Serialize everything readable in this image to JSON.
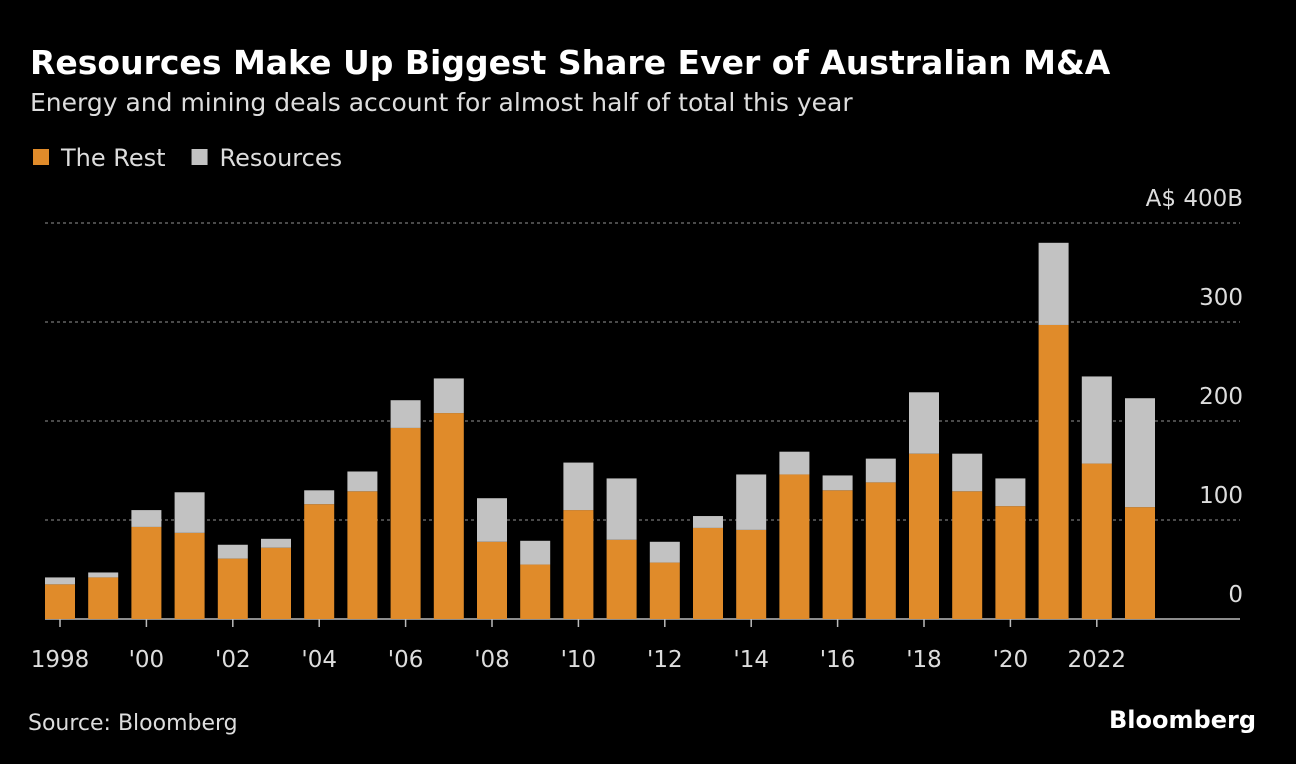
{
  "chart_data": {
    "type": "stacked_bar",
    "title": "Resources Make Up Biggest Share Ever of Australian M&A",
    "subtitle": "Energy and mining deals account for almost half of total this year",
    "categories": [
      "1998",
      null,
      "'00",
      null,
      "'02",
      null,
      "'04",
      null,
      "'06",
      null,
      "'08",
      null,
      "'10",
      null,
      "'12",
      null,
      "'14",
      null,
      "'16",
      null,
      "'18",
      null,
      "'20",
      null,
      "2022",
      null
    ],
    "series": [
      {
        "name": "The Rest",
        "color": "#e08b2a",
        "values": [
          35,
          42,
          93,
          87,
          61,
          72,
          116,
          129,
          193,
          208,
          78,
          55,
          110,
          80,
          57,
          92,
          90,
          146,
          130,
          138,
          167,
          129,
          114,
          297,
          157,
          113
        ]
      },
      {
        "name": "Resources",
        "color": "#c2c2c2",
        "values": [
          7,
          5,
          17,
          41,
          14,
          9,
          14,
          20,
          28,
          35,
          44,
          24,
          48,
          62,
          21,
          12,
          56,
          23,
          15,
          24,
          62,
          38,
          28,
          83,
          88,
          110
        ]
      }
    ],
    "ylim": [
      0,
      400
    ],
    "yticks": [
      0,
      100,
      200,
      300,
      {
        "value": 400,
        "label": "A$ 400B"
      }
    ],
    "grid": true,
    "legend": "top-left",
    "source": "Source: Bloomberg",
    "logo": "Bloomberg"
  }
}
